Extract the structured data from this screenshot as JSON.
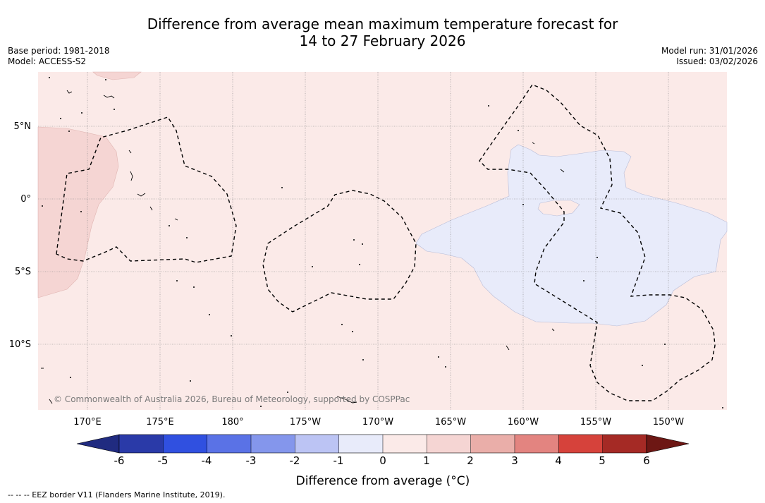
{
  "header": {
    "title_line1": "Difference from average mean maximum temperature forecast for",
    "title_line2": "14 to 27 February 2026",
    "base_period": "Base period: 1981-2018",
    "model": "Model: ACCESS-S2",
    "model_run": "Model run: 31/01/2026",
    "issued": "Issued: 03/02/2026"
  },
  "map": {
    "latitude_labels": [
      "5°N",
      "0°",
      "5°S",
      "10°S"
    ],
    "longitude_labels": [
      "170°E",
      "175°E",
      "180°",
      "175°W",
      "170°W",
      "165°W",
      "160°W",
      "155°W",
      "150°W"
    ],
    "copyright": "© Commonwealth of Australia 2026, Bureau of Meteorology, supported by COSPPac",
    "fill_colors": {
      "background": "#fbeae8",
      "warm_patch": "#f5d5d3",
      "cool_patch": "#e8ebfa"
    }
  },
  "colorbar": {
    "tick_labels": [
      "-6",
      "-5",
      "-4",
      "-3",
      "-2",
      "-1",
      "0",
      "1",
      "2",
      "3",
      "4",
      "5",
      "6"
    ],
    "colors": [
      "#202b80",
      "#2a3aa8",
      "#3050e0",
      "#5a72e6",
      "#8496ec",
      "#bcc4f4",
      "#e8ebfa",
      "#fbeae8",
      "#f5d5d3",
      "#eaaea9",
      "#e38480",
      "#d6423b",
      "#a52a25",
      "#6d1714"
    ],
    "label": "Difference from average (°C)"
  },
  "footnote": "-- -- -- EEZ border V11 (Flanders Marine Institute, 2019)."
}
